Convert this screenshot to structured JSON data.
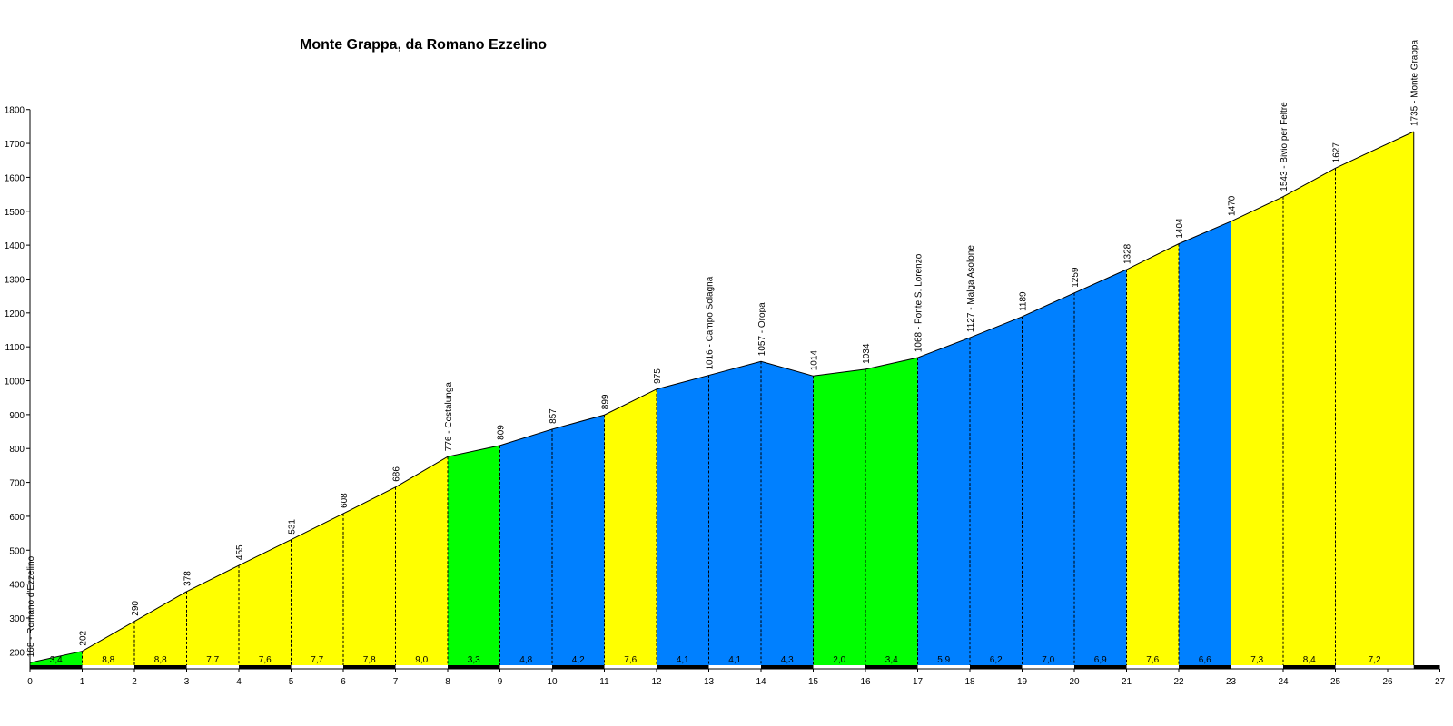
{
  "chart_data": {
    "type": "area",
    "title": "Monte Grappa, da Romano Ezzelino",
    "xlim": [
      0,
      27
    ],
    "ylim": [
      150,
      1800
    ],
    "x_ticks": [
      0,
      1,
      2,
      3,
      4,
      5,
      6,
      7,
      8,
      9,
      10,
      11,
      12,
      13,
      14,
      15,
      16,
      17,
      18,
      19,
      20,
      21,
      22,
      23,
      24,
      25,
      26,
      27
    ],
    "y_ticks": [
      200,
      300,
      400,
      500,
      600,
      700,
      800,
      900,
      1000,
      1100,
      1200,
      1300,
      1400,
      1500,
      1600,
      1700,
      1800
    ],
    "points": [
      {
        "x": 0,
        "y": 168,
        "label": "168 - Romano d'Ezzelino"
      },
      {
        "x": 1,
        "y": 202,
        "label": "202"
      },
      {
        "x": 2,
        "y": 290,
        "label": "290"
      },
      {
        "x": 3,
        "y": 378,
        "label": "378"
      },
      {
        "x": 4,
        "y": 455,
        "label": "455"
      },
      {
        "x": 5,
        "y": 531,
        "label": "531"
      },
      {
        "x": 6,
        "y": 608,
        "label": "608"
      },
      {
        "x": 7,
        "y": 686,
        "label": "686"
      },
      {
        "x": 8,
        "y": 776,
        "label": "776 - Costalunga"
      },
      {
        "x": 9,
        "y": 809,
        "label": "809"
      },
      {
        "x": 10,
        "y": 857,
        "label": "857"
      },
      {
        "x": 11,
        "y": 899,
        "label": "899"
      },
      {
        "x": 12,
        "y": 975,
        "label": "975"
      },
      {
        "x": 13,
        "y": 1016,
        "label": "1016 - Campo Solagna"
      },
      {
        "x": 14,
        "y": 1057,
        "label": "1057 - Oropa"
      },
      {
        "x": 15,
        "y": 1014,
        "label": "1014"
      },
      {
        "x": 16,
        "y": 1034,
        "label": "1034"
      },
      {
        "x": 17,
        "y": 1068,
        "label": "1068 - Ponte S. Lorenzo"
      },
      {
        "x": 18,
        "y": 1127,
        "label": "1127 - Malga Asolone"
      },
      {
        "x": 19,
        "y": 1189,
        "label": "1189"
      },
      {
        "x": 20,
        "y": 1259,
        "label": "1259"
      },
      {
        "x": 21,
        "y": 1328,
        "label": "1328"
      },
      {
        "x": 22,
        "y": 1404,
        "label": "1404"
      },
      {
        "x": 23,
        "y": 1470,
        "label": "1470"
      },
      {
        "x": 24,
        "y": 1543,
        "label": "1543 - Bivio per Feltre"
      },
      {
        "x": 25,
        "y": 1627,
        "label": "1627"
      },
      {
        "x": 26.5,
        "y": 1735,
        "label": "1735 - Monte Grappa"
      }
    ],
    "segments": [
      {
        "grade": "3,4",
        "color": "#00ff00"
      },
      {
        "grade": "8,8",
        "color": "#ffff00"
      },
      {
        "grade": "8,8",
        "color": "#ffff00"
      },
      {
        "grade": "7,7",
        "color": "#ffff00"
      },
      {
        "grade": "7,6",
        "color": "#ffff00"
      },
      {
        "grade": "7,7",
        "color": "#ffff00"
      },
      {
        "grade": "7,8",
        "color": "#ffff00"
      },
      {
        "grade": "9,0",
        "color": "#ffff00"
      },
      {
        "grade": "3,3",
        "color": "#00ff00"
      },
      {
        "grade": "4,8",
        "color": "#0080ff"
      },
      {
        "grade": "4,2",
        "color": "#0080ff"
      },
      {
        "grade": "7,6",
        "color": "#ffff00"
      },
      {
        "grade": "4,1",
        "color": "#0080ff"
      },
      {
        "grade": "4,1",
        "color": "#0080ff"
      },
      {
        "grade": "4,3",
        "color": "#0080ff"
      },
      {
        "grade": "2,0",
        "color": "#00ff00"
      },
      {
        "grade": "3,4",
        "color": "#00ff00"
      },
      {
        "grade": "5,9",
        "color": "#0080ff"
      },
      {
        "grade": "6,2",
        "color": "#0080ff"
      },
      {
        "grade": "7,0",
        "color": "#0080ff"
      },
      {
        "grade": "6,9",
        "color": "#0080ff"
      },
      {
        "grade": "7,6",
        "color": "#ffff00"
      },
      {
        "grade": "6,6",
        "color": "#0080ff"
      },
      {
        "grade": "7,3",
        "color": "#ffff00"
      },
      {
        "grade": "8,4",
        "color": "#ffff00"
      },
      {
        "grade": "7,2",
        "color": "#ffff00"
      }
    ],
    "grid": false,
    "legend": "none"
  }
}
